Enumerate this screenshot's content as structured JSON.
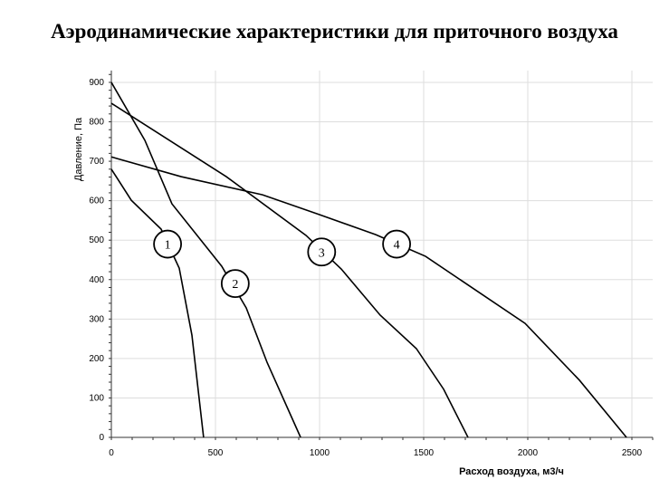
{
  "chart_data": {
    "type": "line",
    "title": "Аэродинамические характеристики для приточного воздуха",
    "xlabel": "Расход воздуха, м3/ч",
    "ylabel": "Давление, Па",
    "xlim": [
      0,
      2600
    ],
    "ylim": [
      0,
      930
    ],
    "xticks": [
      0,
      500,
      1000,
      1500,
      2000,
      2500
    ],
    "yticks": [
      0,
      100,
      200,
      300,
      400,
      500,
      600,
      700,
      800,
      900
    ],
    "grid": true,
    "series": [
      {
        "name": "1",
        "label_at": [
          270,
          490
        ],
        "points": [
          [
            0,
            680
          ],
          [
            96,
            601
          ],
          [
            239,
            528
          ],
          [
            326,
            429
          ],
          [
            387,
            259
          ],
          [
            443,
            0
          ]
        ]
      },
      {
        "name": "2",
        "label_at": [
          595,
          390
        ],
        "points": [
          [
            0,
            900
          ],
          [
            161,
            753
          ],
          [
            291,
            592
          ],
          [
            530,
            434
          ],
          [
            648,
            328
          ],
          [
            748,
            190
          ],
          [
            909,
            0
          ]
        ]
      },
      {
        "name": "3",
        "label_at": [
          1010,
          470
        ],
        "points": [
          [
            0,
            847
          ],
          [
            552,
            661
          ],
          [
            935,
            512
          ],
          [
            1104,
            427
          ],
          [
            1291,
            310
          ],
          [
            1465,
            225
          ],
          [
            1596,
            122
          ],
          [
            1713,
            0
          ]
        ]
      },
      {
        "name": "4",
        "label_at": [
          1370,
          490
        ],
        "points": [
          [
            0,
            711
          ],
          [
            335,
            661
          ],
          [
            726,
            615
          ],
          [
            987,
            567
          ],
          [
            1270,
            514
          ],
          [
            1509,
            459
          ],
          [
            1987,
            289
          ],
          [
            2248,
            145
          ],
          [
            2474,
            0
          ]
        ]
      }
    ]
  }
}
